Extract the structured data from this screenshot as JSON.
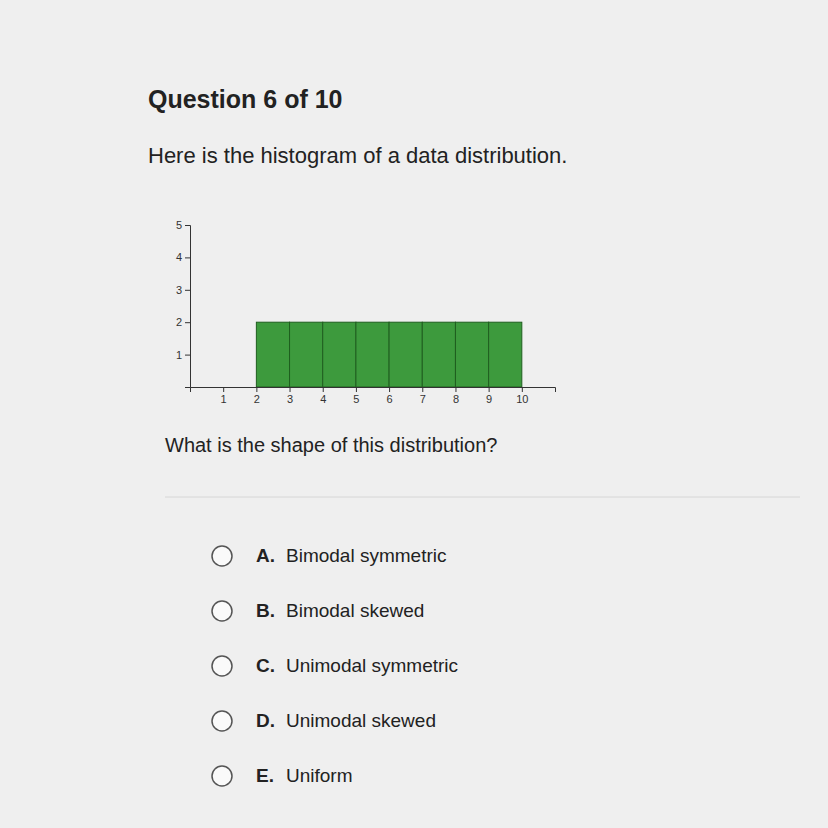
{
  "header": {
    "title": "Question 6 of 10"
  },
  "prompt": "Here is the histogram of a data distribution.",
  "chart_data": {
    "type": "histogram",
    "bins": [
      2,
      3,
      4,
      5,
      6,
      7,
      8,
      9,
      10
    ],
    "values": [
      2,
      2,
      2,
      2,
      2,
      2,
      2,
      2
    ],
    "color": "#3d9a3d",
    "xlim": [
      0,
      11
    ],
    "xticks": [
      1,
      2,
      3,
      4,
      5,
      6,
      7,
      8,
      9,
      10
    ],
    "ylim": [
      0,
      5
    ],
    "yticks": [
      1,
      2,
      3,
      4,
      5
    ]
  },
  "question": "What is the shape of this distribution?",
  "options": [
    {
      "letter": "A.",
      "text": "Bimodal symmetric"
    },
    {
      "letter": "B.",
      "text": "Bimodal skewed"
    },
    {
      "letter": "C.",
      "text": "Unimodal symmetric"
    },
    {
      "letter": "D.",
      "text": "Unimodal skewed"
    },
    {
      "letter": "E.",
      "text": "Uniform"
    }
  ]
}
